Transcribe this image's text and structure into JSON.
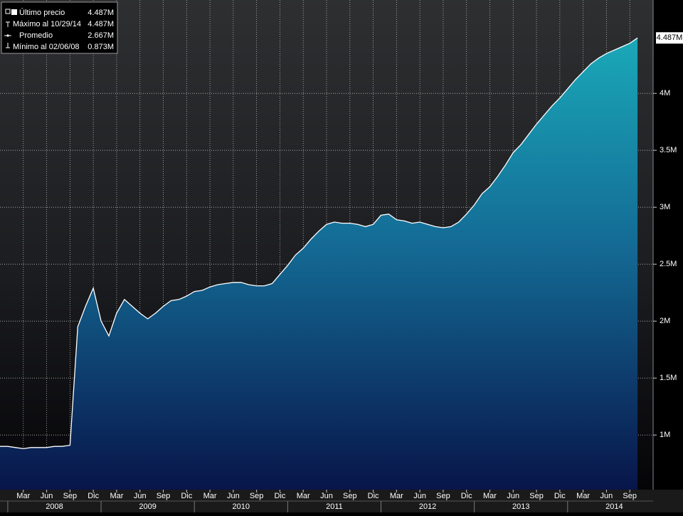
{
  "chart_data": {
    "type": "area",
    "color": "#1aa3b3",
    "line_color": "#ffffff",
    "grid": true,
    "legend": {
      "corner": "top-left",
      "entries": [
        {
          "label": "Último precio",
          "value": "4.487M"
        },
        {
          "label": "Máximo al 10/29/14",
          "value": "4.487M"
        },
        {
          "label": "Promedio",
          "value": "2.667M"
        },
        {
          "label": "Mínimo al 02/06/08",
          "value": "0.873M"
        }
      ]
    },
    "last_label": {
      "value": 4.487,
      "label": "4.487M"
    },
    "xlim": [
      "2007-12",
      "2014-12"
    ],
    "ylim": [
      0.52,
      4.82
    ],
    "yticks": [
      {
        "value": 1,
        "label": "1M"
      },
      {
        "value": 1.5,
        "label": "1.5M"
      },
      {
        "value": 2,
        "label": "2M"
      },
      {
        "value": 2.5,
        "label": "2.5M"
      },
      {
        "value": 3,
        "label": "3M"
      },
      {
        "value": 3.5,
        "label": "3.5M"
      },
      {
        "value": 4,
        "label": "4M"
      }
    ],
    "xticks": [
      {
        "value": "2008-03",
        "label": "Mar"
      },
      {
        "value": "2008-06",
        "label": "Jun"
      },
      {
        "value": "2008-09",
        "label": "Sep"
      },
      {
        "value": "2008-12",
        "label": "Dic"
      },
      {
        "value": "2009-03",
        "label": "Mar"
      },
      {
        "value": "2009-06",
        "label": "Jun"
      },
      {
        "value": "2009-09",
        "label": "Sep"
      },
      {
        "value": "2009-12",
        "label": "Dic"
      },
      {
        "value": "2010-03",
        "label": "Mar"
      },
      {
        "value": "2010-06",
        "label": "Jun"
      },
      {
        "value": "2010-09",
        "label": "Sep"
      },
      {
        "value": "2010-12",
        "label": "Dic"
      },
      {
        "value": "2011-03",
        "label": "Mar"
      },
      {
        "value": "2011-06",
        "label": "Jun"
      },
      {
        "value": "2011-09",
        "label": "Sep"
      },
      {
        "value": "2011-12",
        "label": "Dic"
      },
      {
        "value": "2012-03",
        "label": "Mar"
      },
      {
        "value": "2012-06",
        "label": "Jun"
      },
      {
        "value": "2012-09",
        "label": "Sep"
      },
      {
        "value": "2012-12",
        "label": "Dic"
      },
      {
        "value": "2013-03",
        "label": "Mar"
      },
      {
        "value": "2013-06",
        "label": "Jun"
      },
      {
        "value": "2013-09",
        "label": "Sep"
      },
      {
        "value": "2013-12",
        "label": "Dic"
      },
      {
        "value": "2014-03",
        "label": "Mar"
      },
      {
        "value": "2014-06",
        "label": "Jun"
      },
      {
        "value": "2014-09",
        "label": "Sep"
      }
    ],
    "years": [
      "2008",
      "2009",
      "2010",
      "2011",
      "2012",
      "2013",
      "2014"
    ],
    "x": [
      "2008-01",
      "2008-02",
      "2008-03",
      "2008-04",
      "2008-05",
      "2008-06",
      "2008-07",
      "2008-08",
      "2008-09",
      "2008-10",
      "2008-11",
      "2008-12",
      "2009-01",
      "2009-02",
      "2009-03",
      "2009-04",
      "2009-05",
      "2009-06",
      "2009-07",
      "2009-08",
      "2009-09",
      "2009-10",
      "2009-11",
      "2009-12",
      "2010-01",
      "2010-02",
      "2010-03",
      "2010-04",
      "2010-05",
      "2010-06",
      "2010-07",
      "2010-08",
      "2010-09",
      "2010-10",
      "2010-11",
      "2010-12",
      "2011-01",
      "2011-02",
      "2011-03",
      "2011-04",
      "2011-05",
      "2011-06",
      "2011-07",
      "2011-08",
      "2011-09",
      "2011-10",
      "2011-11",
      "2011-12",
      "2012-01",
      "2012-02",
      "2012-03",
      "2012-04",
      "2012-05",
      "2012-06",
      "2012-07",
      "2012-08",
      "2012-09",
      "2012-10",
      "2012-11",
      "2012-12",
      "2013-01",
      "2013-02",
      "2013-03",
      "2013-04",
      "2013-05",
      "2013-06",
      "2013-07",
      "2013-08",
      "2013-09",
      "2013-10",
      "2013-11",
      "2013-12",
      "2014-01",
      "2014-02",
      "2014-03",
      "2014-04",
      "2014-05",
      "2014-06",
      "2014-07",
      "2014-08",
      "2014-09",
      "2014-10"
    ],
    "values": [
      0.9,
      0.89,
      0.88,
      0.89,
      0.89,
      0.89,
      0.9,
      0.9,
      0.91,
      1.95,
      2.13,
      2.29,
      2.0,
      1.87,
      2.07,
      2.19,
      2.13,
      2.07,
      2.02,
      2.07,
      2.13,
      2.18,
      2.19,
      2.22,
      2.26,
      2.27,
      2.3,
      2.32,
      2.33,
      2.34,
      2.34,
      2.32,
      2.31,
      2.31,
      2.33,
      2.41,
      2.49,
      2.58,
      2.64,
      2.72,
      2.79,
      2.85,
      2.87,
      2.86,
      2.86,
      2.85,
      2.83,
      2.85,
      2.93,
      2.94,
      2.89,
      2.88,
      2.86,
      2.87,
      2.85,
      2.83,
      2.82,
      2.83,
      2.87,
      2.94,
      3.02,
      3.12,
      3.18,
      3.27,
      3.37,
      3.48,
      3.55,
      3.64,
      3.73,
      3.81,
      3.89,
      3.96,
      4.04,
      4.12,
      4.19,
      4.26,
      4.31,
      4.35,
      4.38,
      4.41,
      4.44,
      4.487
    ]
  }
}
